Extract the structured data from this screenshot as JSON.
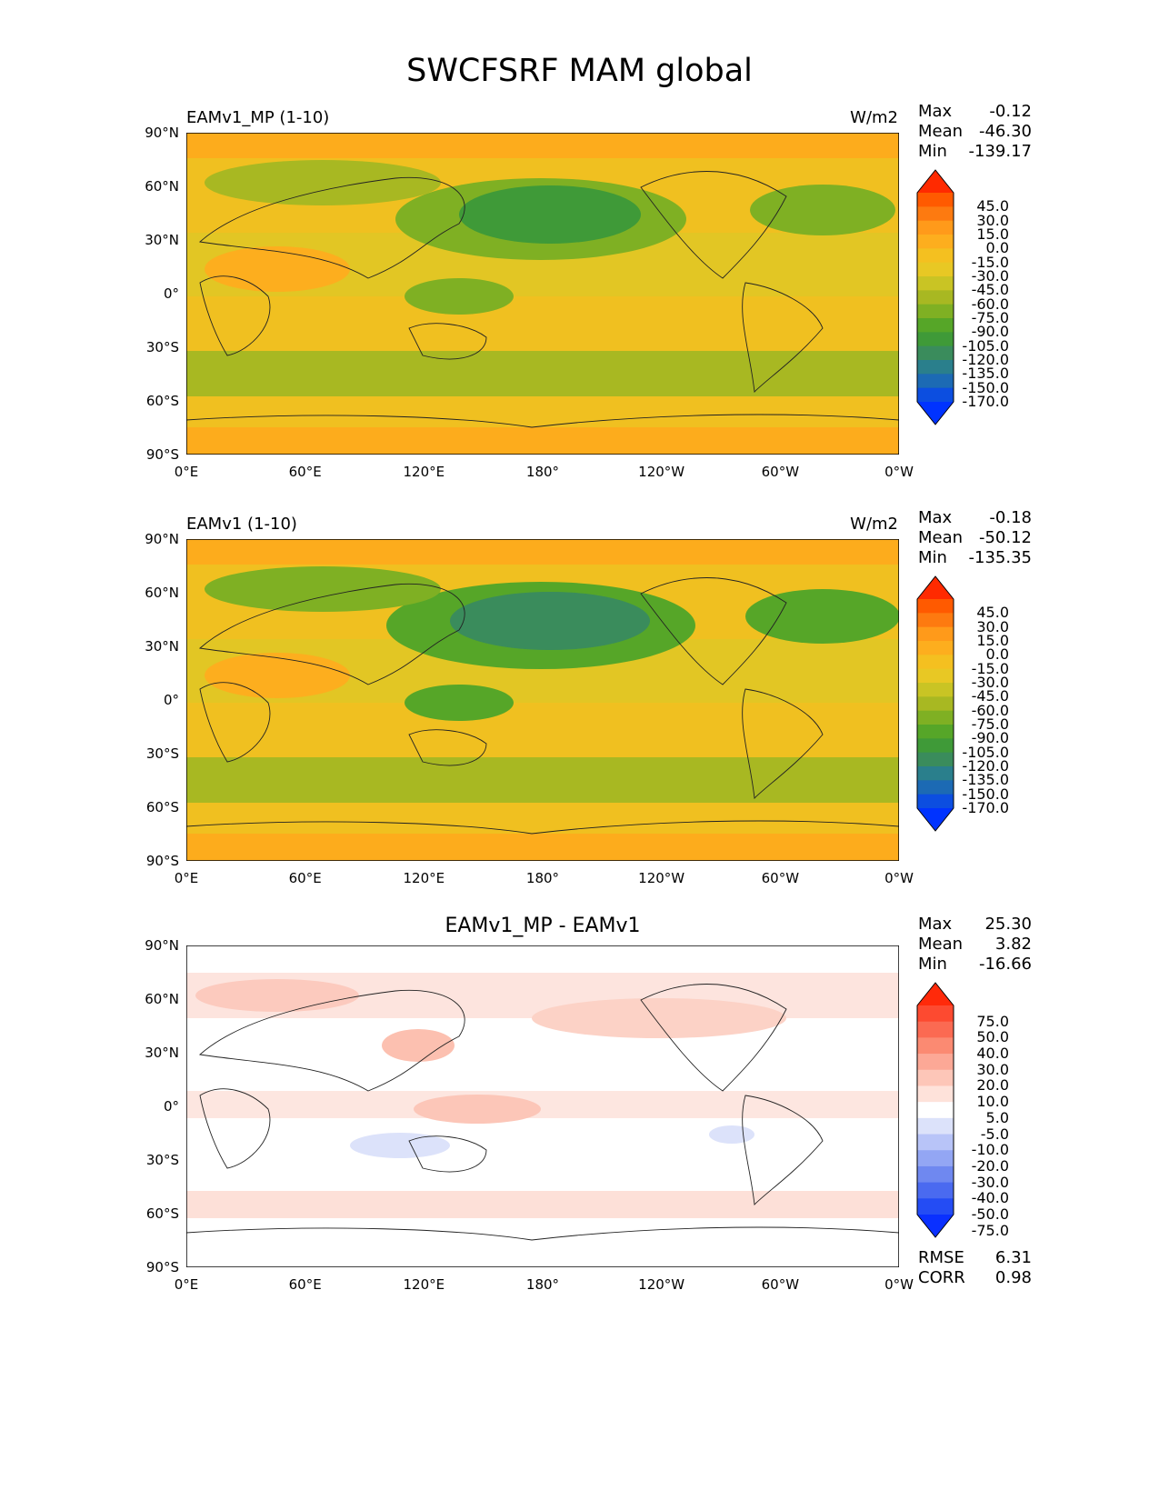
{
  "figure": {
    "title": "SWCFSRF MAM global",
    "lat_ticks": [
      "90°N",
      "60°N",
      "30°N",
      "0°",
      "30°S",
      "60°S",
      "90°S"
    ],
    "lon_ticks": [
      "0°E",
      "60°E",
      "120°E",
      "180°",
      "120°W",
      "60°W",
      "0°W"
    ]
  },
  "panels": [
    {
      "title": "EAMv1_MP (1-10)",
      "units": "W/m2",
      "stats": [
        {
          "label": "Max",
          "value": "-0.12"
        },
        {
          "label": "Mean",
          "value": "-46.30"
        },
        {
          "label": "Min",
          "value": "-139.17"
        }
      ],
      "colorbar_levels": [
        "45.0",
        "30.0",
        "15.0",
        "0.0",
        "-15.0",
        "-30.0",
        "-45.0",
        "-60.0",
        "-75.0",
        "-90.0",
        "-105.0",
        "-120.0",
        "-135.0",
        "-150.0",
        "-170.0"
      ],
      "colorbar_colors": [
        "#ff2a00",
        "#ff5a00",
        "#fd7a10",
        "#ff9a1a",
        "#fdae1e",
        "#f4c020",
        "#e8c824",
        "#c9c424",
        "#a8b822",
        "#7fb023",
        "#56a628",
        "#3f9a38",
        "#3a8c5c",
        "#2a7f8c",
        "#1c6ab4",
        "#0c4ee0",
        "#0033ff"
      ]
    },
    {
      "title": "EAMv1 (1-10)",
      "units": "W/m2",
      "stats": [
        {
          "label": "Max",
          "value": "-0.18"
        },
        {
          "label": "Mean",
          "value": "-50.12"
        },
        {
          "label": "Min",
          "value": "-135.35"
        }
      ],
      "colorbar_levels": [
        "45.0",
        "30.0",
        "15.0",
        "0.0",
        "-15.0",
        "-30.0",
        "-45.0",
        "-60.0",
        "-75.0",
        "-90.0",
        "-105.0",
        "-120.0",
        "-135.0",
        "-150.0",
        "-170.0"
      ],
      "colorbar_colors": [
        "#ff2a00",
        "#ff5a00",
        "#fd7a10",
        "#ff9a1a",
        "#fdae1e",
        "#f4c020",
        "#e8c824",
        "#c9c424",
        "#a8b822",
        "#7fb023",
        "#56a628",
        "#3f9a38",
        "#3a8c5c",
        "#2a7f8c",
        "#1c6ab4",
        "#0c4ee0",
        "#0033ff"
      ]
    },
    {
      "title": "EAMv1_MP - EAMv1",
      "units": "",
      "stats": [
        {
          "label": "Max",
          "value": "25.30"
        },
        {
          "label": "Mean",
          "value": "3.82"
        },
        {
          "label": "Min",
          "value": "-16.66"
        }
      ],
      "extra_stats": [
        {
          "label": "RMSE",
          "value": "6.31"
        },
        {
          "label": "CORR",
          "value": "0.98"
        }
      ],
      "colorbar_levels": [
        "75.0",
        "50.0",
        "40.0",
        "30.0",
        "20.0",
        "10.0",
        "5.0",
        "-5.0",
        "-10.0",
        "-20.0",
        "-30.0",
        "-40.0",
        "-50.0",
        "-75.0"
      ],
      "colorbar_colors": [
        "#ff2a0a",
        "#fd4a30",
        "#fb6a52",
        "#fb8a72",
        "#fca896",
        "#fdc6b8",
        "#fee2da",
        "#ffffff",
        "#dce2fa",
        "#b8c4f8",
        "#93a6f4",
        "#6f88f0",
        "#4a6af0",
        "#244cf4",
        "#0a30ff"
      ]
    }
  ]
}
